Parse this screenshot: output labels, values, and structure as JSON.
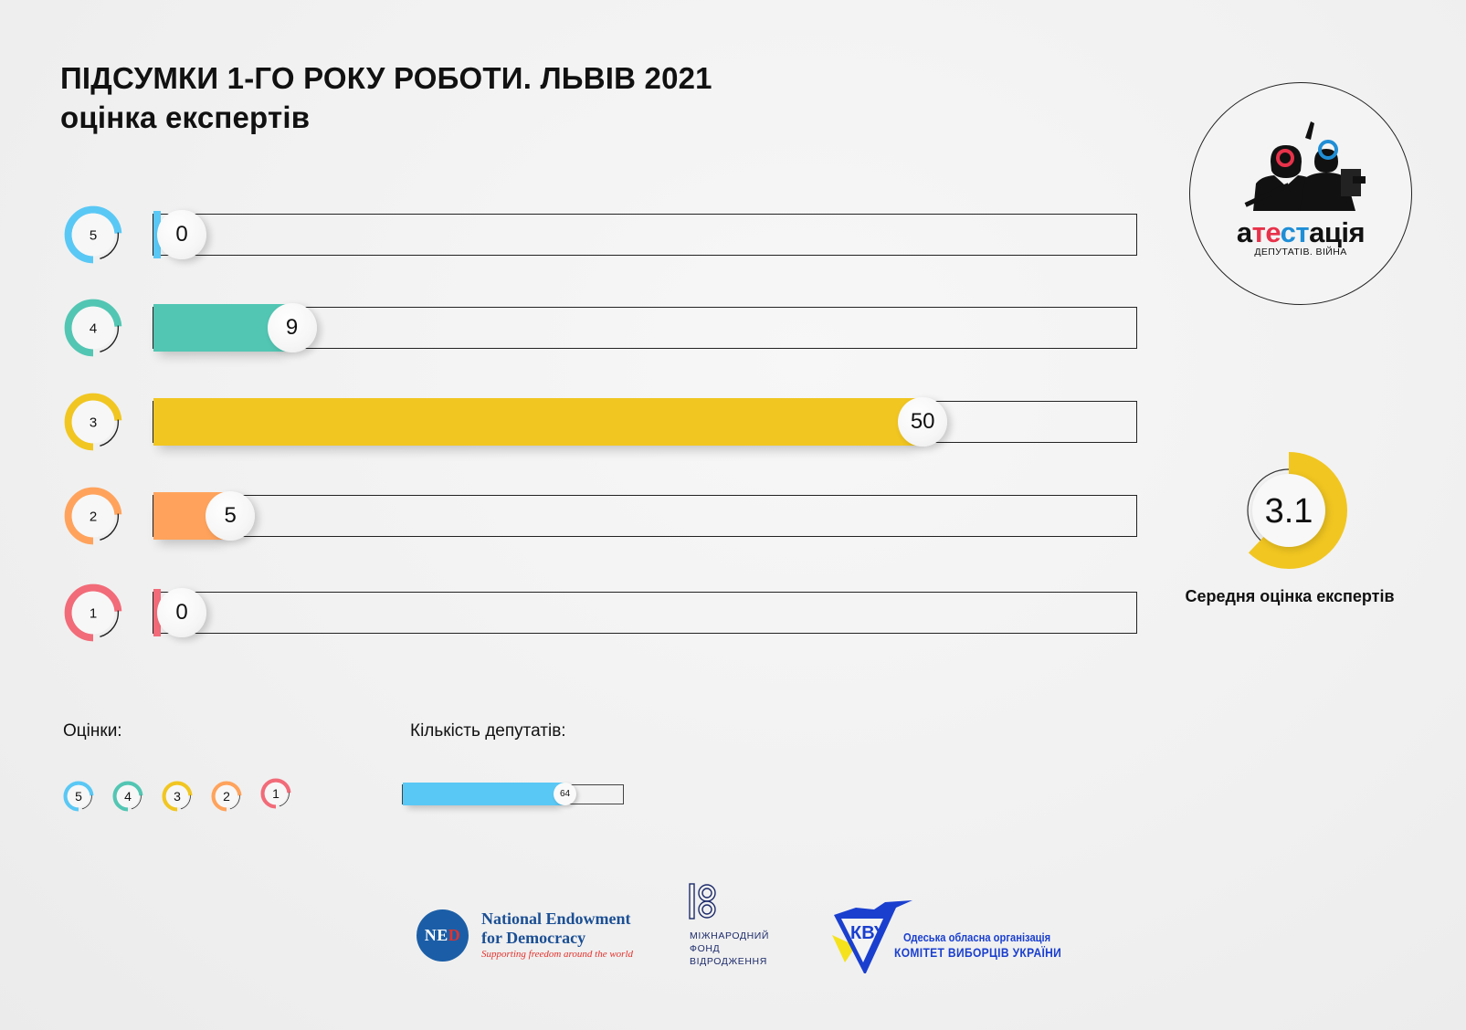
{
  "title": {
    "line1": "ПІДСУМКИ 1-ГО РОКУ РОБОТИ. ЛЬВІВ 2021",
    "line2": "оцінка експертів"
  },
  "chart_data": {
    "type": "bar",
    "orientation": "horizontal",
    "categories": [
      "5",
      "4",
      "3",
      "2",
      "1"
    ],
    "values": [
      0,
      9,
      50,
      5,
      0
    ],
    "colors": [
      "#5ac8f5",
      "#52c6b3",
      "#f1c621",
      "#ffa35c",
      "#f26b78"
    ],
    "max": 64,
    "average": {
      "value": "3.1",
      "label": "Середня оцінка експертів",
      "scale_max": 5,
      "color": "#f1c621"
    }
  },
  "legend": {
    "grades_label": "Оцінки:",
    "grades": [
      "5",
      "4",
      "3",
      "2",
      "1"
    ],
    "count_label": "Кількість депутатів:",
    "count_value": "64",
    "count_color": "#5ac8f5"
  },
  "logo": {
    "word_parts": [
      "а",
      "те",
      "ст",
      "ація"
    ],
    "subtitle": "ДЕПУТАТІВ. ВІЙНА",
    "icon": "two-figures-silhouette-icon"
  },
  "sponsors": {
    "ned": {
      "abbr_ne": "NE",
      "abbr_d": "D",
      "name_line1": "National Endowment",
      "name_line2": "for Democracy",
      "tagline": "Supporting freedom around the world"
    },
    "irf": {
      "icon": "irf-logo-icon",
      "text": "МІЖНАРОДНИЙ\nФОНД\nВІДРОДЖЕННЯ"
    },
    "cvu": {
      "icon": "cvu-emblem-icon",
      "line1": "Одеська обласна організація",
      "line2": "КОМІТЕТ ВИБОРЦІВ УКРАЇНИ",
      "colors": [
        "#1a3fcf",
        "#f5e21c"
      ]
    }
  }
}
